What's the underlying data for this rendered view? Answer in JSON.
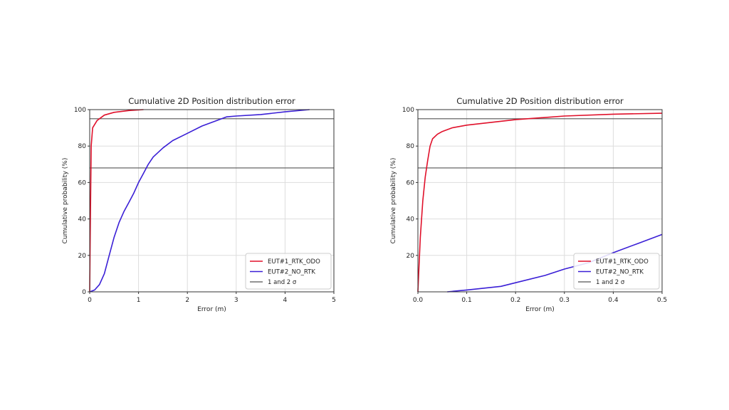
{
  "chart_data": [
    {
      "type": "line",
      "title": "Cumulative 2D Position distribution error",
      "xlabel": "Error (m)",
      "ylabel": "Cumulative probability (%)",
      "xlim": [
        0,
        5
      ],
      "ylim": [
        0,
        100
      ],
      "xticks": [
        "0",
        "1",
        "2",
        "3",
        "4",
        "5"
      ],
      "xtick_values": [
        0,
        1,
        2,
        3,
        4,
        5
      ],
      "yticks": [
        "0",
        "20",
        "40",
        "60",
        "80",
        "100"
      ],
      "ytick_values": [
        0,
        20,
        40,
        60,
        80,
        100
      ],
      "grid": true,
      "legend_position": "bottom-right",
      "hlines": [
        68,
        95
      ],
      "series": [
        {
          "name": "EUT#1_RTK_ODO",
          "color": "#e0102a",
          "x": [
            0,
            0.01,
            0.03,
            0.06,
            0.15,
            0.3,
            0.5,
            0.8,
            1.1
          ],
          "y": [
            0,
            30,
            80,
            90,
            94,
            97,
            98.5,
            99.5,
            100
          ]
        },
        {
          "name": "EUT#2_NO_RTK",
          "color": "#3a1fd6",
          "x": [
            0,
            0.1,
            0.2,
            0.3,
            0.4,
            0.5,
            0.6,
            0.7,
            0.8,
            0.9,
            1.0,
            1.1,
            1.2,
            1.3,
            1.5,
            1.7,
            2.0,
            2.3,
            2.6,
            2.8,
            3.0,
            3.5,
            4.0,
            4.5
          ],
          "y": [
            0,
            1,
            4,
            10,
            20,
            30,
            38,
            44,
            49,
            54,
            60,
            65,
            70,
            74,
            79,
            83,
            87,
            91,
            94,
            96,
            96.5,
            97.3,
            98.8,
            100
          ]
        },
        {
          "name": "1 and 2 σ",
          "color": "#555555",
          "x": [],
          "y": []
        }
      ]
    },
    {
      "type": "line",
      "title": "Cumulative 2D Position distribution error",
      "xlabel": "Error (m)",
      "ylabel": "Cumulative probability (%)",
      "xlim": [
        0,
        0.5
      ],
      "ylim": [
        0,
        100
      ],
      "xticks": [
        "0.0",
        "0.1",
        "0.2",
        "0.3",
        "0.4",
        "0.5"
      ],
      "xtick_values": [
        0,
        0.1,
        0.2,
        0.3,
        0.4,
        0.5
      ],
      "yticks": [
        "20",
        "40",
        "60",
        "80",
        "100"
      ],
      "ytick_values": [
        20,
        40,
        60,
        80,
        100
      ],
      "grid": true,
      "legend_position": "bottom-right",
      "hlines": [
        68,
        95
      ],
      "series": [
        {
          "name": "EUT#1_RTK_ODO",
          "color": "#e0102a",
          "x": [
            0,
            0.005,
            0.01,
            0.015,
            0.02,
            0.025,
            0.03,
            0.04,
            0.05,
            0.07,
            0.1,
            0.15,
            0.2,
            0.3,
            0.4,
            0.5
          ],
          "y": [
            0,
            30,
            50,
            63,
            72,
            80,
            84,
            86.5,
            88,
            90,
            91.5,
            93,
            94.5,
            96.5,
            97.5,
            98
          ]
        },
        {
          "name": "EUT#2_NO_RTK",
          "color": "#3a1fd6",
          "x": [
            0.06,
            0.1,
            0.17,
            0.2,
            0.26,
            0.3,
            0.35,
            0.4,
            0.45,
            0.5
          ],
          "y": [
            0,
            1,
            3,
            5,
            9,
            12.5,
            16,
            21.5,
            26.5,
            31.5
          ]
        },
        {
          "name": "1 and 2 σ",
          "color": "#555555",
          "x": [],
          "y": []
        }
      ]
    }
  ]
}
